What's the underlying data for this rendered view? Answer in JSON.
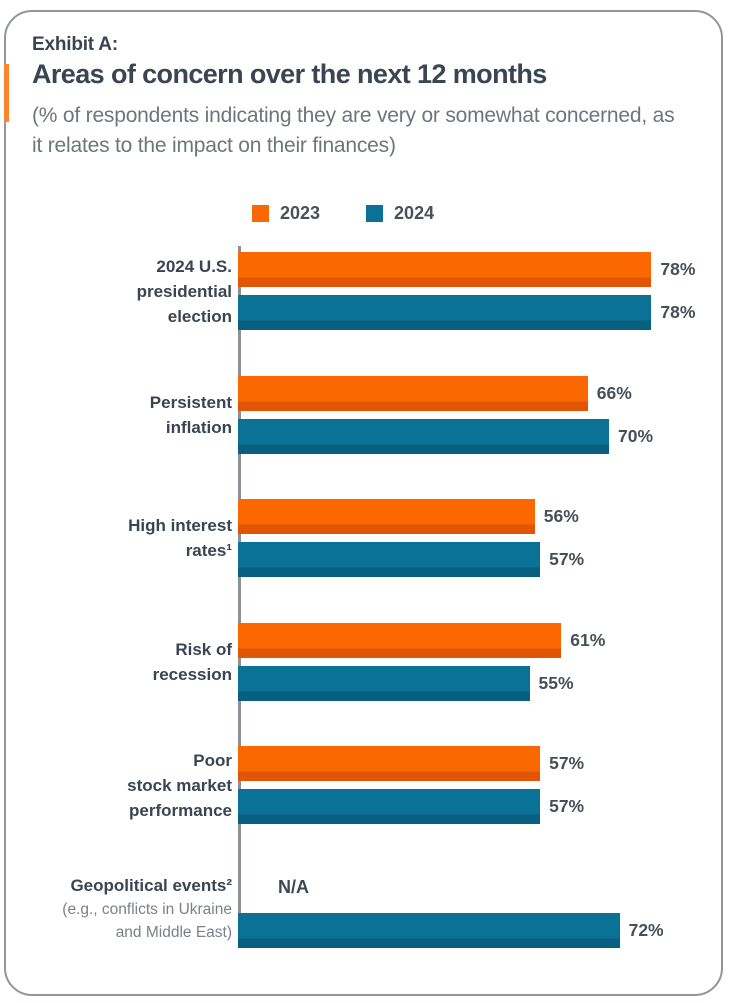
{
  "card": {
    "exhibit_label": "Exhibit A:",
    "title": "Areas of concern over the next 12 months",
    "subtitle": "(% of respondents indicating they are very or somewhat concerned, as it relates to the impact on their finances)"
  },
  "colors": {
    "accent_orange": "#F9852F",
    "series_2023": "#FB6700",
    "series_2023_dark": "#E15505",
    "series_2024": "#0A7294",
    "series_2024_dark": "#076080",
    "axis": "#8B9197",
    "card_border": "#90969C",
    "title_text": "#3A4452",
    "subtitle_text": "#6F757D",
    "value_text": "#484F58"
  },
  "legend": {
    "items": [
      {
        "label": "2023",
        "color": "#FB6700"
      },
      {
        "label": "2024",
        "color": "#0A7294"
      }
    ]
  },
  "chart_data": {
    "type": "bar",
    "orientation": "horizontal",
    "title": "Areas of concern over the next 12 months",
    "subtitle": "(% of respondents indicating they are very or somewhat concerned, as it relates to the impact on their finances)",
    "legend_position": "top",
    "grid": false,
    "xlim": [
      0,
      100
    ],
    "value_suffix": "%",
    "na_label": "N/A",
    "categories": [
      {
        "lines": [
          "2024 U.S.",
          "presidential",
          "election"
        ],
        "sublines": []
      },
      {
        "lines": [
          "Persistent",
          "inflation"
        ],
        "sublines": []
      },
      {
        "lines": [
          "High interest",
          "rates¹"
        ],
        "sublines": []
      },
      {
        "lines": [
          "Risk of",
          "recession"
        ],
        "sublines": []
      },
      {
        "lines": [
          "Poor",
          "stock market",
          "performance"
        ],
        "sublines": []
      },
      {
        "lines": [
          "Geopolitical events²"
        ],
        "sublines": [
          "(e.g., conflicts in Ukraine",
          "and Middle East)"
        ]
      }
    ],
    "series": [
      {
        "name": "2023",
        "color": "#FB6700",
        "color_dark": "#E15505",
        "values": [
          78,
          66,
          56,
          61,
          57,
          null
        ]
      },
      {
        "name": "2024",
        "color": "#0A7294",
        "color_dark": "#076080",
        "values": [
          78,
          70,
          57,
          55,
          57,
          72
        ]
      }
    ]
  }
}
